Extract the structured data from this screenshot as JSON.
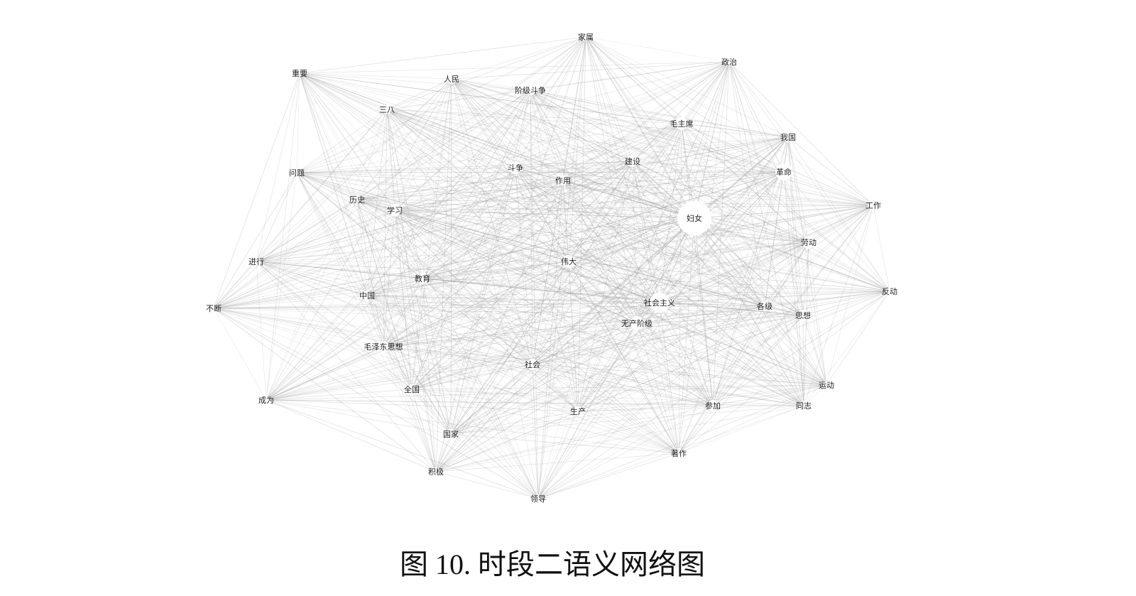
{
  "caption": "图 10. 时段二语义网络图",
  "chart_data": {
    "type": "network",
    "edge_color": "#9a9a9a",
    "node_color": "#ffffff",
    "nodes": [
      {
        "id": "家属"
      },
      {
        "id": "政治"
      },
      {
        "id": "重要"
      },
      {
        "id": "人民"
      },
      {
        "id": "阶级斗争"
      },
      {
        "id": "三八"
      },
      {
        "id": "毛主席"
      },
      {
        "id": "我国"
      },
      {
        "id": "问题"
      },
      {
        "id": "斗争"
      },
      {
        "id": "建设"
      },
      {
        "id": "革命"
      },
      {
        "id": "作用"
      },
      {
        "id": "历史"
      },
      {
        "id": "学习"
      },
      {
        "id": "工作"
      },
      {
        "id": "妇女"
      },
      {
        "id": "劳动"
      },
      {
        "id": "进行"
      },
      {
        "id": "伟大"
      },
      {
        "id": "教育"
      },
      {
        "id": "反动"
      },
      {
        "id": "中国"
      },
      {
        "id": "不断"
      },
      {
        "id": "社会主义"
      },
      {
        "id": "各级"
      },
      {
        "id": "思想"
      },
      {
        "id": "无产阶级"
      },
      {
        "id": "毛泽东思想"
      },
      {
        "id": "社会"
      },
      {
        "id": "运动"
      },
      {
        "id": "全国"
      },
      {
        "id": "成为"
      },
      {
        "id": "生产"
      },
      {
        "id": "参加"
      },
      {
        "id": "同志"
      },
      {
        "id": "国家"
      },
      {
        "id": "著作"
      },
      {
        "id": "积极"
      },
      {
        "id": "领导"
      }
    ]
  }
}
